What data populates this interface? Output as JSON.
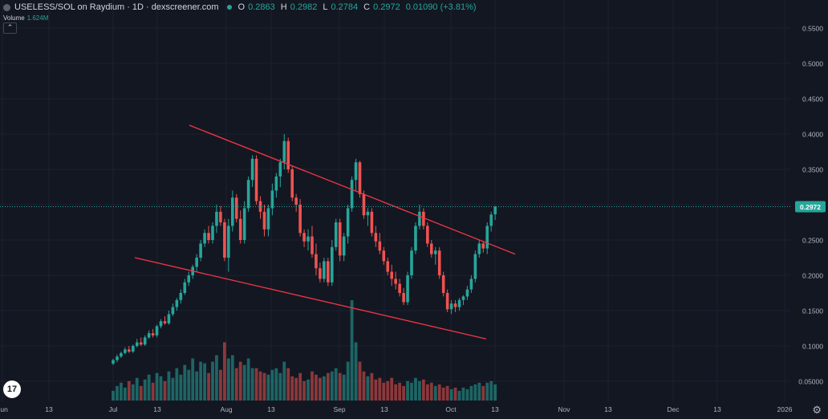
{
  "header": {
    "symbol": "USELESS/SOL on Raydium · 1D · dexscreener.com",
    "open_label": "O",
    "open": "0.2863",
    "high_label": "H",
    "high": "0.2982",
    "low_label": "L",
    "low": "0.2784",
    "close_label": "C",
    "close": "0.2972",
    "change": "0.01090 (+3.81%)"
  },
  "volume_legend": {
    "label": "Volume",
    "value": "1.624M"
  },
  "logo_text": "17",
  "colors": {
    "up": "#26a69a",
    "down": "#ef5350",
    "trendline": "#f23645",
    "background": "#131722",
    "grid": "#1e2230",
    "text": "#b2b5be"
  },
  "chart_data": {
    "type": "candlestick",
    "x_tick_labels": [
      "Jun",
      "13",
      "Jul",
      "13",
      "Aug",
      "13",
      "Sep",
      "13",
      "Oct",
      "13",
      "Nov",
      "13",
      "Dec",
      "13",
      "2026"
    ],
    "y_ticks": [
      "0.5500",
      "0.5000",
      "0.4500",
      "0.4000",
      "0.3500",
      "0.3000",
      "0.2500",
      "0.2000",
      "0.1500",
      "0.1000",
      "0.05000"
    ],
    "ylim": [
      0.05,
      0.55
    ],
    "last_price": "0.2972",
    "start_date": "2025-06-26",
    "candles": [
      [
        0.075,
        0.082,
        0.073,
        0.08
      ],
      [
        0.08,
        0.088,
        0.077,
        0.085
      ],
      [
        0.085,
        0.092,
        0.083,
        0.09
      ],
      [
        0.09,
        0.098,
        0.088,
        0.095
      ],
      [
        0.095,
        0.1,
        0.09,
        0.092
      ],
      [
        0.092,
        0.102,
        0.09,
        0.1
      ],
      [
        0.1,
        0.11,
        0.098,
        0.105
      ],
      [
        0.105,
        0.112,
        0.1,
        0.102
      ],
      [
        0.102,
        0.115,
        0.1,
        0.112
      ],
      [
        0.112,
        0.122,
        0.11,
        0.118
      ],
      [
        0.118,
        0.124,
        0.112,
        0.115
      ],
      [
        0.115,
        0.13,
        0.112,
        0.128
      ],
      [
        0.128,
        0.138,
        0.125,
        0.135
      ],
      [
        0.135,
        0.142,
        0.13,
        0.132
      ],
      [
        0.132,
        0.15,
        0.13,
        0.145
      ],
      [
        0.145,
        0.16,
        0.142,
        0.155
      ],
      [
        0.155,
        0.168,
        0.15,
        0.165
      ],
      [
        0.165,
        0.18,
        0.16,
        0.175
      ],
      [
        0.175,
        0.195,
        0.172,
        0.19
      ],
      [
        0.19,
        0.205,
        0.185,
        0.2
      ],
      [
        0.2,
        0.215,
        0.195,
        0.212
      ],
      [
        0.212,
        0.23,
        0.205,
        0.225
      ],
      [
        0.225,
        0.25,
        0.22,
        0.245
      ],
      [
        0.245,
        0.265,
        0.24,
        0.26
      ],
      [
        0.26,
        0.27,
        0.245,
        0.25
      ],
      [
        0.25,
        0.275,
        0.245,
        0.27
      ],
      [
        0.27,
        0.3,
        0.26,
        0.29
      ],
      [
        0.29,
        0.298,
        0.27,
        0.275
      ],
      [
        0.275,
        0.28,
        0.22,
        0.225
      ],
      [
        0.225,
        0.28,
        0.205,
        0.27
      ],
      [
        0.27,
        0.32,
        0.262,
        0.31
      ],
      [
        0.31,
        0.315,
        0.275,
        0.28
      ],
      [
        0.28,
        0.292,
        0.245,
        0.25
      ],
      [
        0.25,
        0.305,
        0.245,
        0.295
      ],
      [
        0.295,
        0.34,
        0.29,
        0.335
      ],
      [
        0.335,
        0.37,
        0.325,
        0.365
      ],
      [
        0.365,
        0.37,
        0.3,
        0.305
      ],
      [
        0.305,
        0.312,
        0.28,
        0.29
      ],
      [
        0.29,
        0.3,
        0.255,
        0.265
      ],
      [
        0.265,
        0.3,
        0.255,
        0.295
      ],
      [
        0.295,
        0.33,
        0.285,
        0.32
      ],
      [
        0.32,
        0.345,
        0.31,
        0.34
      ],
      [
        0.34,
        0.365,
        0.325,
        0.36
      ],
      [
        0.36,
        0.4,
        0.35,
        0.39
      ],
      [
        0.39,
        0.395,
        0.345,
        0.35
      ],
      [
        0.35,
        0.355,
        0.305,
        0.31
      ],
      [
        0.31,
        0.315,
        0.29,
        0.3
      ],
      [
        0.3,
        0.308,
        0.255,
        0.26
      ],
      [
        0.26,
        0.265,
        0.24,
        0.248
      ],
      [
        0.248,
        0.265,
        0.235,
        0.255
      ],
      [
        0.255,
        0.27,
        0.225,
        0.23
      ],
      [
        0.23,
        0.245,
        0.2,
        0.21
      ],
      [
        0.21,
        0.218,
        0.19,
        0.195
      ],
      [
        0.195,
        0.225,
        0.19,
        0.22
      ],
      [
        0.22,
        0.225,
        0.185,
        0.19
      ],
      [
        0.19,
        0.25,
        0.185,
        0.24
      ],
      [
        0.24,
        0.28,
        0.235,
        0.275
      ],
      [
        0.275,
        0.28,
        0.22,
        0.228
      ],
      [
        0.228,
        0.26,
        0.22,
        0.255
      ],
      [
        0.255,
        0.3,
        0.245,
        0.295
      ],
      [
        0.295,
        0.34,
        0.29,
        0.335
      ],
      [
        0.335,
        0.365,
        0.32,
        0.36
      ],
      [
        0.36,
        0.362,
        0.31,
        0.315
      ],
      [
        0.315,
        0.32,
        0.28,
        0.285
      ],
      [
        0.285,
        0.295,
        0.27,
        0.29
      ],
      [
        0.29,
        0.295,
        0.255,
        0.26
      ],
      [
        0.26,
        0.27,
        0.24,
        0.248
      ],
      [
        0.248,
        0.26,
        0.23,
        0.235
      ],
      [
        0.235,
        0.24,
        0.215,
        0.22
      ],
      [
        0.22,
        0.225,
        0.2,
        0.205
      ],
      [
        0.205,
        0.215,
        0.185,
        0.195
      ],
      [
        0.195,
        0.205,
        0.18,
        0.188
      ],
      [
        0.188,
        0.195,
        0.17,
        0.175
      ],
      [
        0.175,
        0.182,
        0.158,
        0.162
      ],
      [
        0.162,
        0.205,
        0.158,
        0.2
      ],
      [
        0.2,
        0.24,
        0.195,
        0.235
      ],
      [
        0.235,
        0.275,
        0.23,
        0.27
      ],
      [
        0.27,
        0.3,
        0.265,
        0.29
      ],
      [
        0.29,
        0.295,
        0.265,
        0.27
      ],
      [
        0.27,
        0.275,
        0.24,
        0.245
      ],
      [
        0.245,
        0.25,
        0.225,
        0.23
      ],
      [
        0.23,
        0.24,
        0.215,
        0.235
      ],
      [
        0.235,
        0.24,
        0.195,
        0.2
      ],
      [
        0.2,
        0.205,
        0.17,
        0.175
      ],
      [
        0.175,
        0.18,
        0.148,
        0.152
      ],
      [
        0.152,
        0.165,
        0.145,
        0.16
      ],
      [
        0.16,
        0.165,
        0.148,
        0.155
      ],
      [
        0.155,
        0.168,
        0.15,
        0.165
      ],
      [
        0.165,
        0.172,
        0.158,
        0.17
      ],
      [
        0.17,
        0.185,
        0.165,
        0.18
      ],
      [
        0.18,
        0.2,
        0.175,
        0.195
      ],
      [
        0.195,
        0.235,
        0.19,
        0.23
      ],
      [
        0.23,
        0.25,
        0.225,
        0.245
      ],
      [
        0.245,
        0.248,
        0.232,
        0.238
      ],
      [
        0.238,
        0.275,
        0.23,
        0.27
      ],
      [
        0.27,
        0.29,
        0.262,
        0.286
      ],
      [
        0.2863,
        0.2982,
        0.2784,
        0.2972
      ]
    ],
    "volumes": [
      0.3,
      0.45,
      0.55,
      0.4,
      0.6,
      0.5,
      0.7,
      0.45,
      0.65,
      0.8,
      0.55,
      0.85,
      0.75,
      0.6,
      0.9,
      0.7,
      1.0,
      0.8,
      1.1,
      0.95,
      1.3,
      0.9,
      1.2,
      1.15,
      0.85,
      1.2,
      1.4,
      0.95,
      1.8,
      1.3,
      1.4,
      1.0,
      1.2,
      1.1,
      1.3,
      1.0,
      1.0,
      0.9,
      0.85,
      0.8,
      0.95,
      1.0,
      0.85,
      1.2,
      1.0,
      0.75,
      0.7,
      0.85,
      0.6,
      0.65,
      0.9,
      0.8,
      0.7,
      0.75,
      0.85,
      0.9,
      1.0,
      0.85,
      0.8,
      1.2,
      3.1,
      1.8,
      1.2,
      0.9,
      0.75,
      0.85,
      0.65,
      0.7,
      0.55,
      0.6,
      0.7,
      0.5,
      0.55,
      0.45,
      0.6,
      0.55,
      0.7,
      0.6,
      0.65,
      0.5,
      0.55,
      0.45,
      0.5,
      0.4,
      0.45,
      0.35,
      0.4,
      0.3,
      0.4,
      0.35,
      0.45,
      0.5,
      0.55,
      0.45,
      0.55,
      0.6,
      0.5
    ],
    "trendlines": [
      {
        "start": [
          0.4125
        ],
        "end": [
          0.23
        ]
      },
      {
        "start": [
          0.225
        ],
        "end": [
          0.11
        ]
      }
    ]
  }
}
